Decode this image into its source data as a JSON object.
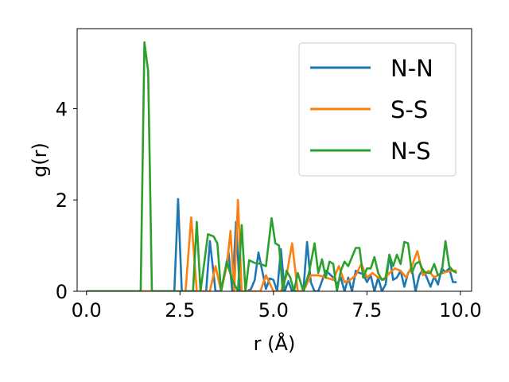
{
  "chart_data": {
    "type": "line",
    "xlabel": "r (Å)",
    "ylabel": "g(r)",
    "xlim": [
      -0.25,
      10.3
    ],
    "ylim": [
      0,
      5.75
    ],
    "xticks": [
      0.0,
      2.5,
      5.0,
      7.5,
      10.0
    ],
    "xtick_labels": [
      "0.0",
      "2.5",
      "5.0",
      "7.5",
      "10.0"
    ],
    "yticks": [
      0,
      2,
      4
    ],
    "ytick_labels": [
      "0",
      "2",
      "4"
    ],
    "grid": false,
    "legend_position": "top-right",
    "series": [
      {
        "name": "N-N",
        "color": "#1f77b4",
        "x": [
          0.0,
          2.35,
          2.45,
          2.55,
          2.65,
          3.2,
          3.3,
          3.45,
          3.6,
          3.8,
          3.9,
          4.0,
          4.1,
          4.2,
          4.3,
          4.4,
          4.5,
          4.6,
          4.7,
          4.8,
          4.9,
          5.0,
          5.1,
          5.2,
          5.3,
          5.4,
          5.5,
          5.7,
          5.8,
          5.9,
          6.0,
          6.1,
          6.2,
          6.4,
          6.5,
          6.6,
          6.7,
          6.8,
          6.9,
          7.0,
          7.1,
          7.2,
          7.3,
          7.4,
          7.5,
          7.6,
          7.7,
          7.8,
          7.9,
          8.0,
          8.1,
          8.2,
          8.3,
          8.4,
          8.5,
          8.6,
          8.7,
          8.8,
          8.9,
          9.0,
          9.1,
          9.2,
          9.3,
          9.4,
          9.5,
          9.6,
          9.7,
          9.8,
          9.9
        ],
        "y": [
          0.0,
          0.0,
          2.02,
          0.0,
          0.0,
          0.0,
          1.1,
          0.0,
          0.0,
          0.85,
          0.0,
          1.52,
          0.0,
          0.0,
          0.0,
          0.05,
          0.25,
          0.85,
          0.45,
          0.05,
          0.28,
          0.25,
          0.0,
          0.92,
          0.0,
          0.22,
          0.0,
          0.0,
          0.0,
          1.08,
          0.2,
          0.0,
          0.0,
          0.45,
          0.38,
          0.3,
          0.15,
          0.3,
          0.0,
          0.3,
          0.0,
          0.45,
          0.4,
          0.38,
          0.2,
          0.35,
          0.0,
          0.3,
          0.0,
          0.15,
          0.8,
          0.25,
          0.3,
          0.45,
          0.1,
          0.4,
          0.5,
          0.0,
          0.35,
          0.48,
          0.3,
          0.1,
          0.32,
          0.15,
          0.5,
          0.42,
          0.5,
          0.2,
          0.2
        ]
      },
      {
        "name": "S-S",
        "color": "#ff7f0e",
        "x": [
          0.0,
          2.65,
          2.8,
          2.95,
          3.1,
          3.3,
          3.45,
          3.6,
          3.75,
          3.85,
          3.95,
          4.05,
          4.15,
          4.3,
          4.5,
          4.65,
          4.8,
          5.0,
          5.2,
          5.35,
          5.5,
          5.65,
          5.8,
          6.0,
          6.2,
          6.4,
          6.6,
          6.75,
          6.9,
          7.05,
          7.2,
          7.35,
          7.5,
          7.65,
          7.8,
          7.95,
          8.1,
          8.25,
          8.4,
          8.55,
          8.7,
          8.85,
          9.0,
          9.15,
          9.3,
          9.45,
          9.6,
          9.75,
          9.9
        ],
        "y": [
          0.0,
          0.0,
          1.62,
          0.0,
          0.0,
          0.0,
          0.55,
          0.0,
          0.55,
          1.32,
          0.0,
          2.0,
          0.0,
          0.0,
          0.0,
          0.0,
          0.35,
          0.0,
          0.0,
          0.35,
          1.05,
          0.0,
          0.0,
          0.35,
          0.35,
          0.3,
          0.25,
          0.55,
          0.2,
          0.25,
          0.35,
          0.6,
          0.3,
          0.4,
          0.3,
          0.25,
          0.4,
          0.5,
          0.45,
          0.3,
          0.55,
          0.88,
          0.35,
          0.45,
          0.3,
          0.38,
          0.42,
          0.45,
          0.45
        ]
      },
      {
        "name": "N-S",
        "color": "#2ca02c",
        "x": [
          0.0,
          1.45,
          1.55,
          1.65,
          1.75,
          2.85,
          2.95,
          3.05,
          3.25,
          3.4,
          3.5,
          3.6,
          3.75,
          3.9,
          4.05,
          4.15,
          4.25,
          4.35,
          4.5,
          4.65,
          4.8,
          4.95,
          5.05,
          5.15,
          5.25,
          5.35,
          5.45,
          5.55,
          5.65,
          5.8,
          5.95,
          6.1,
          6.2,
          6.3,
          6.4,
          6.5,
          6.6,
          6.7,
          6.8,
          6.9,
          7.0,
          7.1,
          7.2,
          7.3,
          7.4,
          7.5,
          7.6,
          7.7,
          7.8,
          7.9,
          8.0,
          8.1,
          8.2,
          8.3,
          8.4,
          8.5,
          8.6,
          8.7,
          8.8,
          8.9,
          9.0,
          9.1,
          9.2,
          9.3,
          9.4,
          9.5,
          9.6,
          9.7,
          9.8,
          9.9
        ],
        "y": [
          0.0,
          0.0,
          5.45,
          4.82,
          0.0,
          0.0,
          1.52,
          0.0,
          1.25,
          1.2,
          1.05,
          0.0,
          0.65,
          0.25,
          0.0,
          1.45,
          0.0,
          0.68,
          0.62,
          0.6,
          0.55,
          1.6,
          1.05,
          1.0,
          0.0,
          0.45,
          0.3,
          0.0,
          0.4,
          0.0,
          0.4,
          1.05,
          0.4,
          0.7,
          0.3,
          0.65,
          0.6,
          0.0,
          0.45,
          0.65,
          0.55,
          0.75,
          0.95,
          0.95,
          0.3,
          0.5,
          0.5,
          0.75,
          0.4,
          0.25,
          0.3,
          0.8,
          0.55,
          0.8,
          0.6,
          1.08,
          1.05,
          0.4,
          0.6,
          0.65,
          0.45,
          0.4,
          0.4,
          0.6,
          0.35,
          0.4,
          1.1,
          0.55,
          0.45,
          0.4
        ]
      }
    ]
  }
}
